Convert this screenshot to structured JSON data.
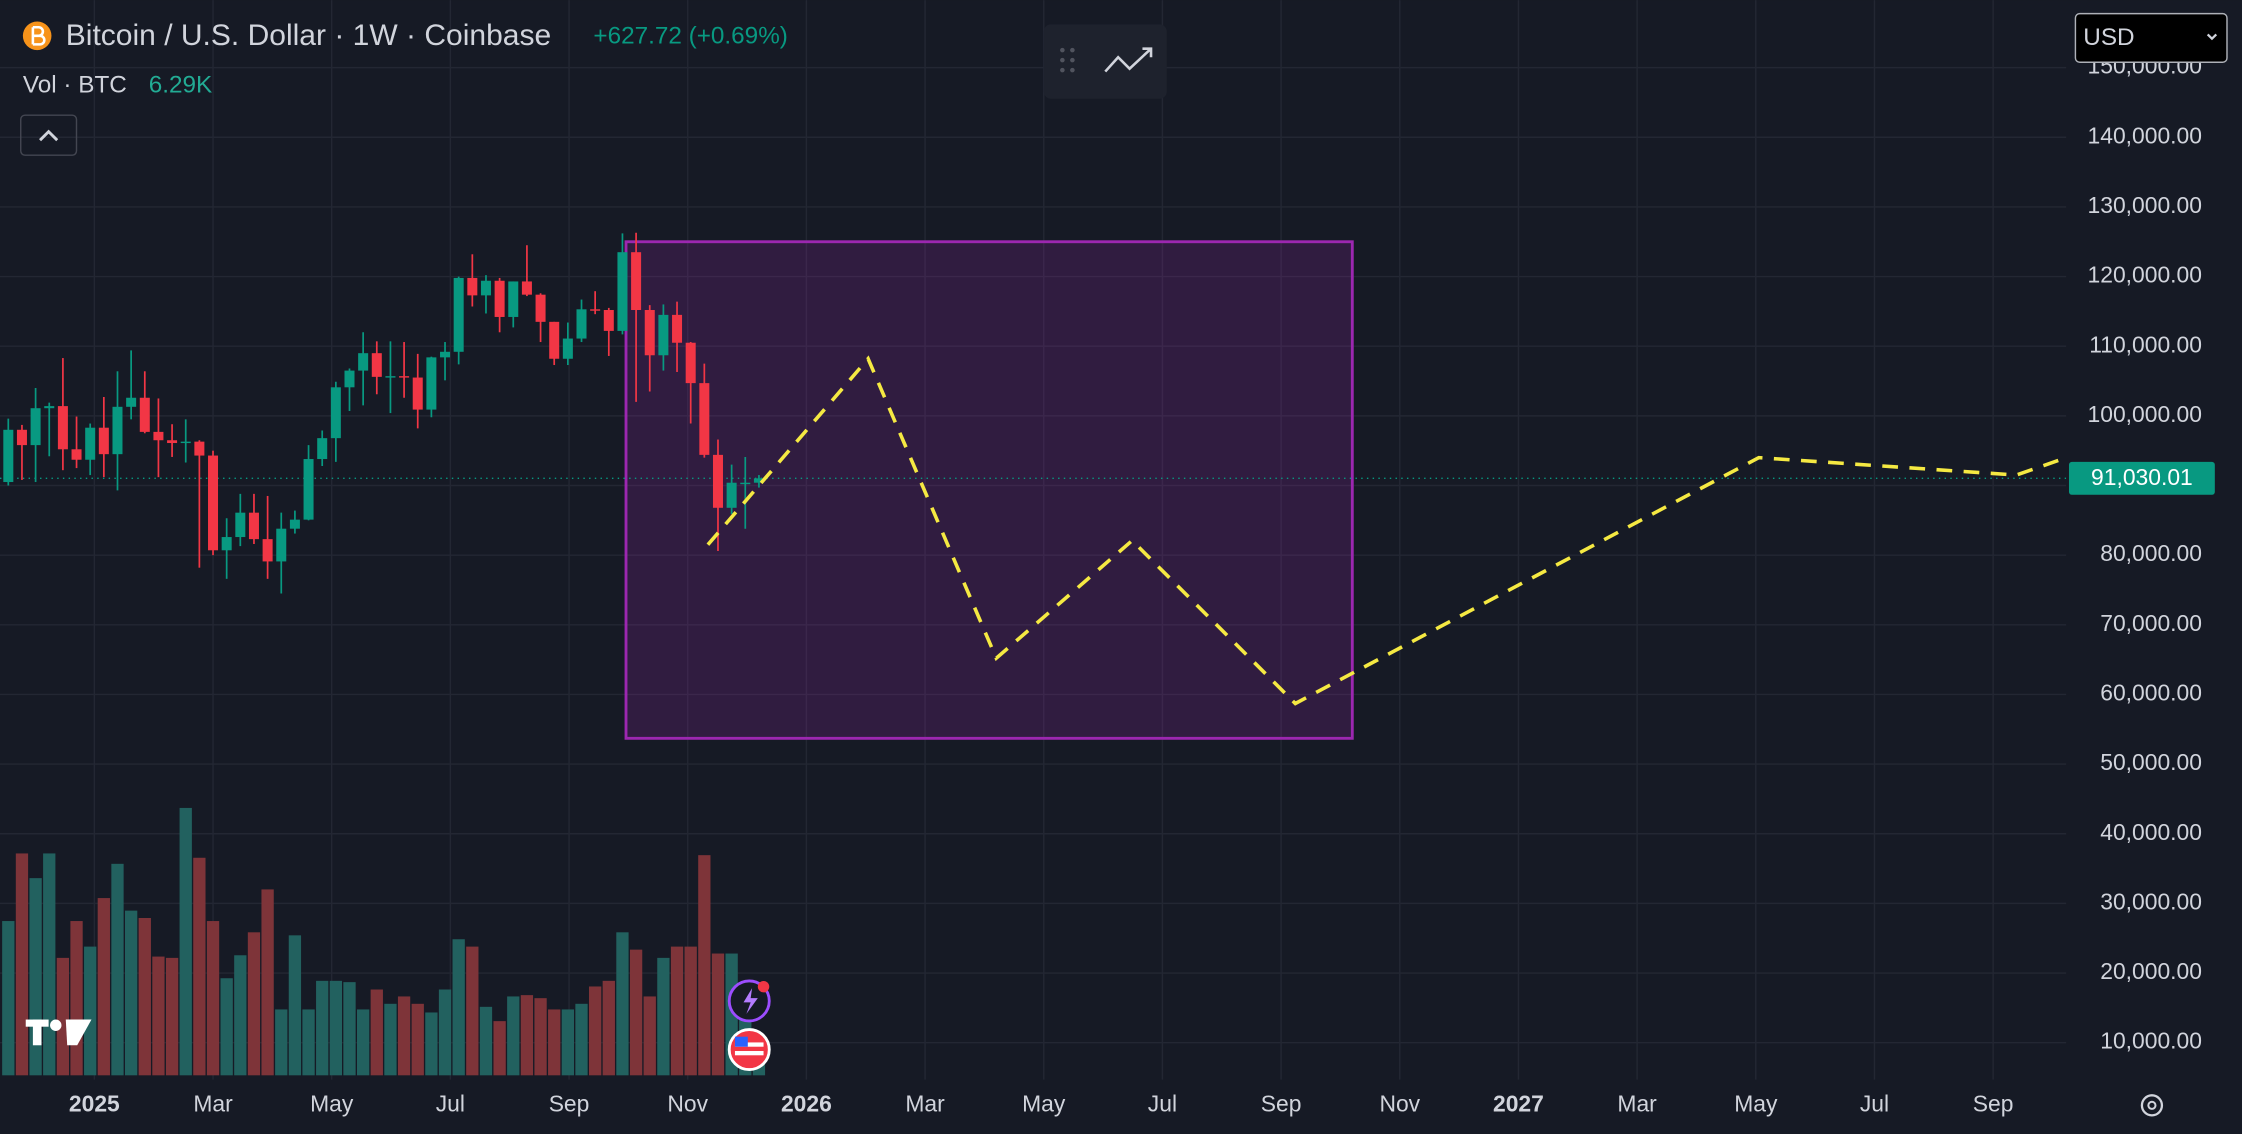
{
  "chart_data": {
    "type": "candlestick",
    "title": "Bitcoin / U.S. Dollar · 1W · Coinbase",
    "change": "+627.72 (+0.69%)",
    "volume_indicator": {
      "name": "Vol · BTC",
      "value": 6290,
      "label": "6.29K"
    },
    "currency": "USD",
    "up_color": "#089981",
    "down_color": "#f23645",
    "volume_up_color": "#22615f",
    "volume_down_color": "#7e3439",
    "x": [
      -1.45,
      -1.22,
      -0.99,
      -0.76,
      -0.53,
      -0.3,
      -0.07,
      0.16,
      0.39,
      0.62,
      0.85,
      1.08,
      1.31,
      1.54,
      1.77,
      2.0,
      2.23,
      2.46,
      2.69,
      2.92,
      3.15,
      3.38,
      3.61,
      3.84,
      4.07,
      4.3,
      4.53,
      4.76,
      4.99,
      5.22,
      5.45,
      5.68,
      5.91,
      6.14,
      6.37,
      6.6,
      6.83,
      7.06,
      7.29,
      7.52,
      7.75,
      7.98,
      8.21,
      8.44,
      8.67,
      8.9,
      9.13,
      9.36,
      9.59,
      9.82,
      10.05,
      10.28,
      10.51,
      10.74,
      10.97,
      11.2
    ],
    "open": [
      90500,
      98000,
      95800,
      101100,
      101400,
      95200,
      93700,
      98300,
      94500,
      101300,
      102600,
      97700,
      96500,
      96100,
      96300,
      94300,
      80700,
      82600,
      86100,
      82300,
      79100,
      83800,
      85100,
      93800,
      96800,
      104100,
      106500,
      109000,
      105600,
      105700,
      105500,
      100900,
      108400,
      109200,
      119800,
      117300,
      119400,
      114200,
      119300,
      117400,
      113500,
      108200,
      111100,
      115300,
      115200,
      112200,
      123500,
      115200,
      108700,
      114500,
      110500,
      104700,
      94400,
      86800,
      90400,
      90400
    ],
    "high": [
      99600,
      98700,
      104000,
      101900,
      108300,
      99900,
      98900,
      102700,
      106400,
      109400,
      106400,
      102500,
      98800,
      99500,
      96500,
      95000,
      85300,
      88800,
      88800,
      88500,
      86100,
      86400,
      95800,
      97900,
      104900,
      106800,
      112000,
      110700,
      110700,
      110600,
      108900,
      108500,
      110600,
      120000,
      123200,
      120200,
      119800,
      119300,
      124500,
      117600,
      113500,
      113400,
      116700,
      117900,
      115500,
      126200,
      126300,
      115900,
      116000,
      116400,
      110600,
      107500,
      96600,
      93000,
      94100,
      91500
    ],
    "low": [
      90000,
      90800,
      90500,
      94200,
      92200,
      92500,
      91500,
      91200,
      89300,
      99500,
      97500,
      91200,
      94100,
      93300,
      78200,
      80000,
      76600,
      81300,
      81600,
      76600,
      74500,
      83100,
      85000,
      92800,
      93400,
      100700,
      101500,
      103100,
      100400,
      102600,
      98200,
      99800,
      105100,
      107400,
      115700,
      114700,
      112000,
      112700,
      117200,
      110600,
      107300,
      107300,
      110600,
      114600,
      108600,
      111700,
      102000,
      103500,
      106500,
      106300,
      98900,
      94000,
      80600,
      85900,
      83800,
      89700
    ],
    "close": [
      98000,
      95800,
      101100,
      101400,
      95200,
      93700,
      98300,
      94500,
      101300,
      102600,
      97700,
      96500,
      96100,
      96300,
      94300,
      80700,
      82600,
      86100,
      82300,
      79100,
      83800,
      85100,
      93800,
      96800,
      104100,
      106500,
      109000,
      105600,
      105700,
      105500,
      100900,
      108400,
      109200,
      119800,
      117300,
      119400,
      114200,
      119300,
      117400,
      113500,
      108200,
      111100,
      115300,
      115200,
      112200,
      123500,
      115200,
      108700,
      114500,
      110500,
      104700,
      94400,
      86800,
      90400,
      90400,
      91030.01
    ],
    "volume": [
      35600,
      51200,
      45500,
      51200,
      27100,
      35600,
      29700,
      40900,
      48800,
      38000,
      36300,
      27400,
      27100,
      61700,
      50200,
      35600,
      22400,
      27700,
      33000,
      42900,
      15200,
      32300,
      15200,
      21800,
      21800,
      21500,
      15200,
      19800,
      16500,
      18200,
      16500,
      14500,
      19800,
      31400,
      29700,
      15800,
      12500,
      18200,
      18500,
      17800,
      15200,
      15200,
      16500,
      20500,
      21800,
      33000,
      29000,
      18200,
      27100,
      29700,
      29700,
      50800,
      28100,
      28100,
      13200,
      6290
    ],
    "last_price": {
      "value": 91030.01,
      "label": "91,030.01"
    },
    "box": {
      "x": [
        8.96,
        21.2
      ],
      "y": [
        53700,
        125000
      ],
      "color": "#9c27b0"
    },
    "projection": {
      "x": [
        10.34,
        13.04,
        15.2,
        17.49,
        20.24,
        28.05,
        32.39,
        33.1
      ],
      "y": [
        81500,
        108200,
        65200,
        82100,
        58700,
        94000,
        91500,
        93600
      ],
      "color": "#f5e942"
    },
    "xlim": [
      -1.59,
      33.23
    ],
    "xticks": [
      {
        "value": 0,
        "label": "2025"
      },
      {
        "value": 2,
        "label": "Mar"
      },
      {
        "value": 4,
        "label": "May"
      },
      {
        "value": 6,
        "label": "Jul"
      },
      {
        "value": 8,
        "label": "Sep"
      },
      {
        "value": 10,
        "label": "Nov"
      },
      {
        "value": 12,
        "label": "2026"
      },
      {
        "value": 14,
        "label": "Mar"
      },
      {
        "value": 16,
        "label": "May"
      },
      {
        "value": 18,
        "label": "Jul"
      },
      {
        "value": 20,
        "label": "Sep"
      },
      {
        "value": 22,
        "label": "Nov"
      },
      {
        "value": 24,
        "label": "2027"
      },
      {
        "value": 26,
        "label": "Mar"
      },
      {
        "value": 28,
        "label": "May"
      },
      {
        "value": 30,
        "label": "Jul"
      },
      {
        "value": 32,
        "label": "Sep"
      }
    ],
    "ylim": [
      4700,
      159700
    ],
    "yticks": [
      {
        "value": 10000,
        "label": "10,000.00"
      },
      {
        "value": 20000,
        "label": "20,000.00"
      },
      {
        "value": 30000,
        "label": "30,000.00"
      },
      {
        "value": 40000,
        "label": "40,000.00"
      },
      {
        "value": 50000,
        "label": "50,000.00"
      },
      {
        "value": 60000,
        "label": "60,000.00"
      },
      {
        "value": 70000,
        "label": "70,000.00"
      },
      {
        "value": 80000,
        "label": "80,000.00"
      },
      {
        "value": 90000,
        "label": "90,000.00"
      },
      {
        "value": 100000,
        "label": "100,000.00"
      },
      {
        "value": 110000,
        "label": "110,000.00"
      },
      {
        "value": 120000,
        "label": "120,000.00"
      },
      {
        "value": 130000,
        "label": "130,000.00"
      },
      {
        "value": 140000,
        "label": "140,000.00"
      },
      {
        "value": 150000,
        "label": "150,000.00"
      }
    ],
    "grid": true
  }
}
